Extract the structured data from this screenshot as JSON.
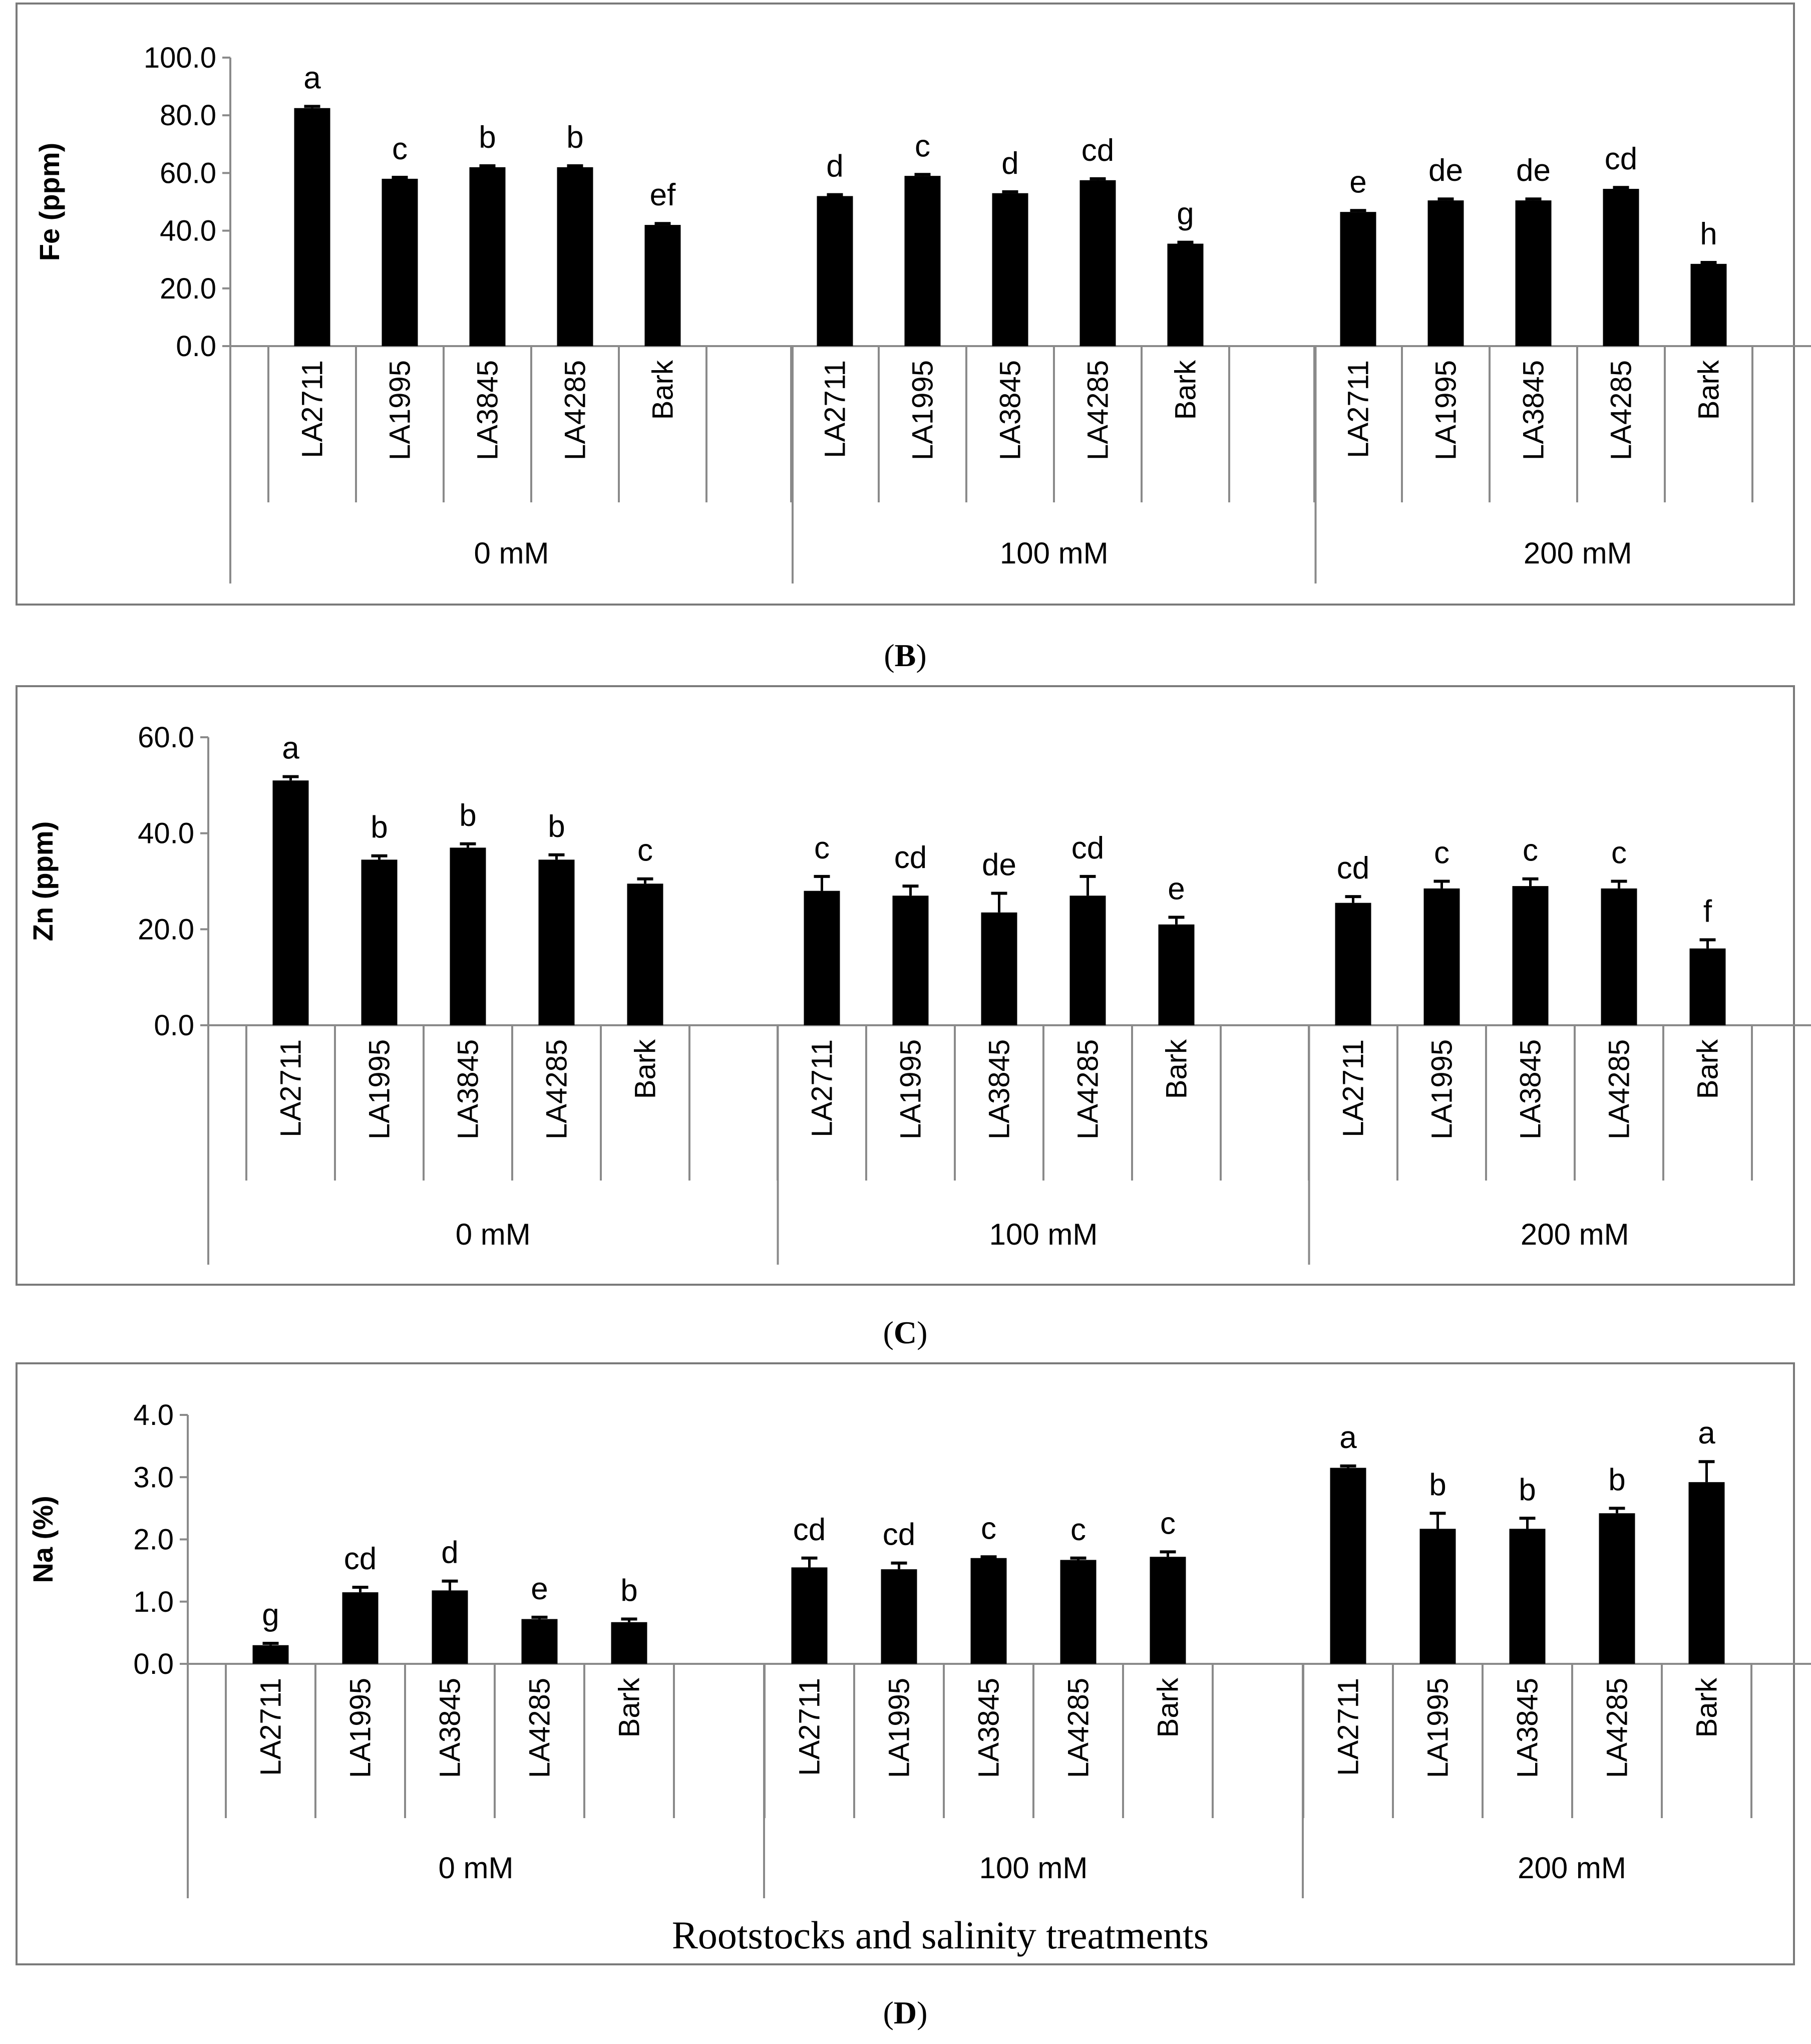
{
  "panel_labels": {
    "B": {
      "open": "(",
      "letter": "B",
      "close": ")"
    },
    "C": {
      "open": "(",
      "letter": "C",
      "close": ")"
    },
    "D": {
      "open": "(",
      "letter": "D",
      "close": ")"
    }
  },
  "colors": {
    "bar": "#000000",
    "axis": "#8a8a8a",
    "frame": "#7a7a7a",
    "text": "#000000"
  },
  "chart_data": [
    {
      "id": "B",
      "type": "bar",
      "title": "",
      "ylabel": "Fe (ppm)",
      "xlabel": "",
      "ylim": [
        0,
        100
      ],
      "yticks": [
        "0.0",
        "20.0",
        "40.0",
        "60.0",
        "80.0",
        "100.0"
      ],
      "groups": [
        "0 mM",
        "100 mM",
        "200 mM"
      ],
      "categories": [
        "LA2711",
        "LA1995",
        "LA3845",
        "LA4285",
        "Bark"
      ],
      "values": [
        [
          82.5,
          58.0,
          62.0,
          62.0,
          42.0
        ],
        [
          52.0,
          59.0,
          53.0,
          57.5,
          35.5
        ],
        [
          46.5,
          50.5,
          50.5,
          54.5,
          28.5
        ]
      ],
      "errors": [
        [
          0.6,
          0.5,
          0.5,
          0.5,
          0.5
        ],
        [
          0.5,
          0.5,
          0.5,
          0.5,
          0.5
        ],
        [
          0.5,
          0.5,
          0.5,
          0.5,
          0.5
        ]
      ],
      "letters": [
        [
          "a",
          "c",
          "b",
          "b",
          "ef"
        ],
        [
          "d",
          "c",
          "d",
          "cd",
          "g"
        ],
        [
          "e",
          "de",
          "de",
          "cd",
          "h"
        ]
      ]
    },
    {
      "id": "C",
      "type": "bar",
      "title": "",
      "ylabel": "Zn (ppm)",
      "xlabel": "",
      "ylim": [
        0,
        60
      ],
      "yticks": [
        "0.0",
        "20.0",
        "40.0",
        "60.0"
      ],
      "groups": [
        "0 mM",
        "100 mM",
        "200 mM"
      ],
      "categories": [
        "LA2711",
        "LA1995",
        "LA3845",
        "LA4285",
        "Bark"
      ],
      "values": [
        [
          51.0,
          34.5,
          37.0,
          34.5,
          29.5
        ],
        [
          28.0,
          27.0,
          23.5,
          27.0,
          21.0
        ],
        [
          25.5,
          28.5,
          29.0,
          28.5,
          16.0
        ]
      ],
      "errors": [
        [
          0.8,
          0.8,
          0.8,
          1.0,
          1.0
        ],
        [
          3.0,
          2.0,
          4.0,
          4.0,
          1.5
        ],
        [
          1.3,
          1.5,
          1.5,
          1.5,
          1.8
        ]
      ],
      "letters": [
        [
          "a",
          "b",
          "b",
          "b",
          "c"
        ],
        [
          "c",
          "cd",
          "de",
          "cd",
          "e"
        ],
        [
          "cd",
          "c",
          "c",
          "c",
          "f"
        ]
      ]
    },
    {
      "id": "D",
      "type": "bar",
      "title": "",
      "ylabel": "Na (%)",
      "xlabel": "Rootstocks and salinity treatments",
      "ylim": [
        0,
        4
      ],
      "yticks": [
        "0.0",
        "1.0",
        "2.0",
        "3.0",
        "4.0"
      ],
      "groups": [
        "0 mM",
        "100 mM",
        "200 mM"
      ],
      "categories": [
        "LA2711",
        "LA1995",
        "LA3845",
        "LA4285",
        "Bark"
      ],
      "values": [
        [
          0.3,
          1.15,
          1.18,
          0.72,
          0.67
        ],
        [
          1.55,
          1.52,
          1.7,
          1.67,
          1.72
        ],
        [
          3.15,
          2.17,
          2.17,
          2.42,
          2.92
        ]
      ],
      "errors": [
        [
          0.03,
          0.08,
          0.15,
          0.03,
          0.05
        ],
        [
          0.15,
          0.1,
          0.02,
          0.03,
          0.08
        ],
        [
          0.03,
          0.25,
          0.17,
          0.08,
          0.33
        ]
      ],
      "letters": [
        [
          "g",
          "cd",
          "d",
          "e",
          "b"
        ],
        [
          "cd",
          "cd",
          "c",
          "c",
          "c"
        ],
        [
          "a",
          "b",
          "b",
          "b",
          "a"
        ]
      ]
    }
  ]
}
